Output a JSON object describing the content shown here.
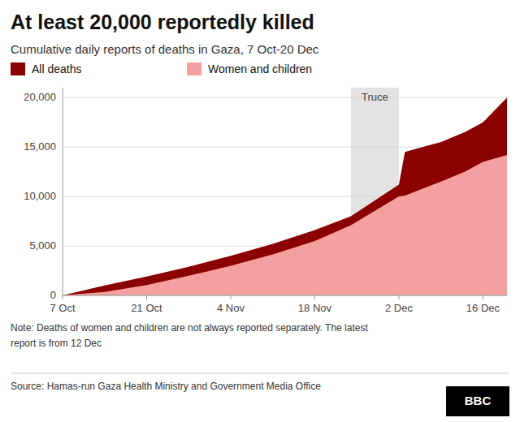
{
  "chart_data": {
    "type": "area",
    "title": "At least 20,000 reportedly killed",
    "subtitle": "Cumulative daily reports of deaths in Gaza, 7 Oct-20 Dec",
    "x": [
      0,
      7,
      14,
      21,
      28,
      35,
      42,
      48,
      56,
      57,
      63,
      67,
      70,
      74
    ],
    "series": [
      {
        "name": "All deaths",
        "color": "#8B0000",
        "values": [
          0,
          1000,
          1900,
          2900,
          4000,
          5200,
          6600,
          8000,
          11200,
          14500,
          15500,
          16500,
          17500,
          20000
        ]
      },
      {
        "name": "Women and children",
        "color": "#F4A0A0",
        "values": [
          0,
          350,
          1050,
          1980,
          3000,
          4150,
          5500,
          7100,
          10000,
          10100,
          11500,
          12500,
          13500,
          14200
        ]
      }
    ],
    "xlim": [
      0,
      74
    ],
    "xticks": [
      {
        "value": 0,
        "label": "7 Oct"
      },
      {
        "value": 14,
        "label": "21 Oct"
      },
      {
        "value": 28,
        "label": "4 Nov"
      },
      {
        "value": 42,
        "label": "18 Nov"
      },
      {
        "value": 56,
        "label": "2 Dec"
      },
      {
        "value": 70,
        "label": "16 Dec"
      }
    ],
    "ylim": [
      0,
      21000
    ],
    "yticks": [
      0,
      {
        "value": 5000,
        "label": "5,000"
      },
      {
        "value": 10000,
        "label": "10,000"
      },
      {
        "value": 15000,
        "label": "15,000"
      },
      {
        "value": 20000,
        "label": "20,000"
      }
    ],
    "grid": true,
    "legend": "top",
    "annotations": [
      {
        "type": "span",
        "x0": 48,
        "x1": 56,
        "label": "Truce",
        "color": "#CCCCCC"
      }
    ],
    "notes": [
      "Note: Deaths of women and children are not always reported separately. The latest",
      "report is from 12 Dec"
    ],
    "source": "Source: Hamas-run Gaza Health Ministry and Government Media Office",
    "logo": "BBC"
  }
}
